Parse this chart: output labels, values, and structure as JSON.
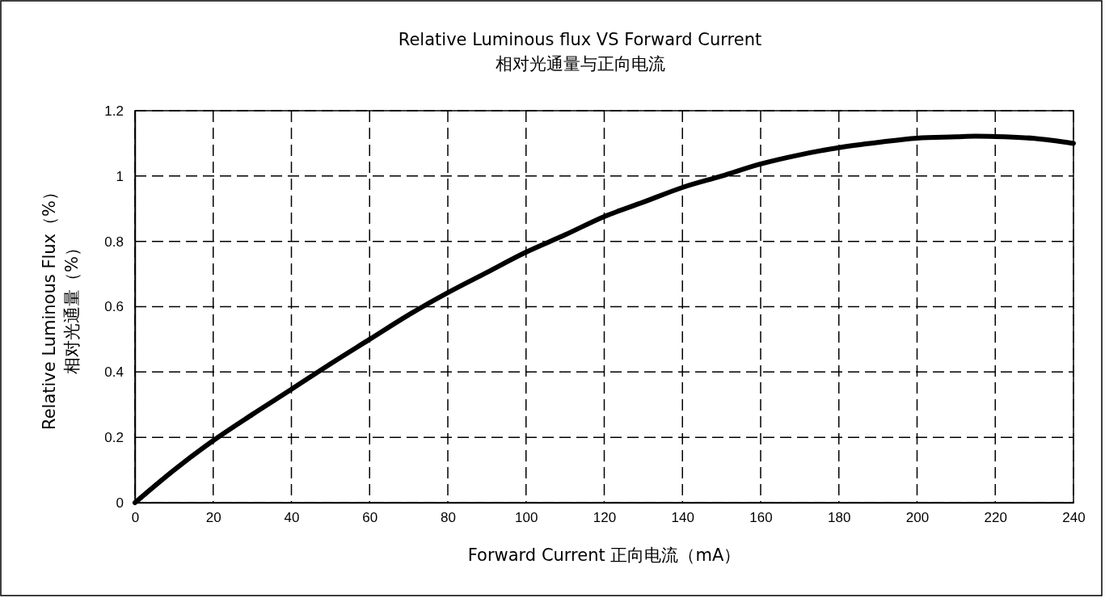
{
  "chart_data": {
    "type": "line",
    "title": "Relative Luminous flux VS Forward Current\n相对光通量与正向电流",
    "xlabel": "Forward Current 正向电流（mA）",
    "ylabel": "Relative Luminous Flux（%）相对光通量（%）",
    "x": [
      0,
      10,
      20,
      30,
      40,
      50,
      60,
      70,
      80,
      90,
      100,
      110,
      120,
      130,
      140,
      150,
      160,
      170,
      180,
      190,
      200,
      210,
      215,
      220,
      230,
      240
    ],
    "series": [
      {
        "color": "#000000",
        "values": [
          0,
          0.1,
          0.19,
          0.27,
          0.347,
          0.425,
          0.5,
          0.575,
          0.643,
          0.705,
          0.767,
          0.82,
          0.876,
          0.92,
          0.965,
          1.0,
          1.037,
          1.065,
          1.087,
          1.103,
          1.116,
          1.12,
          1.122,
          1.121,
          1.115,
          1.1
        ]
      }
    ],
    "xlim": [
      0,
      240
    ],
    "xticks": [
      0,
      20,
      40,
      60,
      80,
      100,
      120,
      140,
      160,
      180,
      200,
      220,
      240
    ],
    "ylim": [
      0,
      1.2
    ],
    "yticks": [
      0,
      0.2,
      0.4,
      0.6,
      0.8,
      1,
      1.2
    ],
    "grid": true,
    "line_style": "solid",
    "marker": "none"
  }
}
